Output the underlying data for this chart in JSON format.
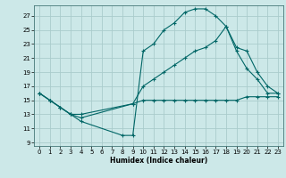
{
  "xlabel": "Humidex (Indice chaleur)",
  "background_color": "#cce8e8",
  "grid_color": "#aacccc",
  "line_color": "#006666",
  "xlim": [
    -0.5,
    23.5
  ],
  "ylim": [
    8.5,
    28.5
  ],
  "xticks": [
    0,
    1,
    2,
    3,
    4,
    5,
    6,
    7,
    8,
    9,
    10,
    11,
    12,
    13,
    14,
    15,
    16,
    17,
    18,
    19,
    20,
    21,
    22,
    23
  ],
  "yticks": [
    9,
    11,
    13,
    15,
    17,
    19,
    21,
    23,
    25,
    27
  ],
  "line1_x": [
    0,
    1,
    2,
    3,
    4,
    9,
    10,
    11,
    12,
    13,
    14,
    15,
    16,
    17,
    18,
    19,
    20,
    21,
    22,
    23
  ],
  "line1_y": [
    16,
    15,
    14,
    13,
    12.5,
    14.5,
    15,
    15,
    15,
    15,
    15,
    15,
    15,
    15,
    15,
    15,
    15.5,
    15.5,
    15.5,
    15.5
  ],
  "line2_x": [
    0,
    1,
    2,
    3,
    4,
    9,
    10,
    11,
    12,
    13,
    14,
    15,
    16,
    17,
    18,
    19,
    20,
    21,
    22,
    23
  ],
  "line2_y": [
    16,
    15,
    14,
    13,
    13,
    14.5,
    17,
    18,
    19,
    20,
    21,
    22,
    22.5,
    23.5,
    25.5,
    22,
    19.5,
    18,
    16,
    16
  ],
  "line3_x": [
    0,
    1,
    2,
    3,
    4,
    8,
    9,
    10,
    11,
    12,
    13,
    14,
    15,
    16,
    17,
    18,
    19,
    20,
    21,
    22,
    23
  ],
  "line3_y": [
    16,
    15,
    14,
    13,
    12,
    10,
    10,
    22,
    23,
    25,
    26,
    27.5,
    28,
    28,
    27,
    25.5,
    22.5,
    22,
    19,
    17,
    16
  ]
}
